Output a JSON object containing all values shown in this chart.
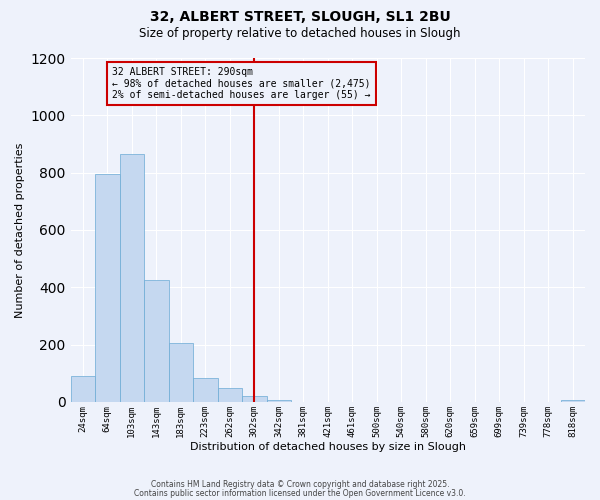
{
  "title": "32, ALBERT STREET, SLOUGH, SL1 2BU",
  "subtitle": "Size of property relative to detached houses in Slough",
  "xlabel": "Distribution of detached houses by size in Slough",
  "ylabel": "Number of detached properties",
  "bar_color": "#c5d8f0",
  "bar_edge_color": "#6aaad4",
  "background_color": "#eef2fb",
  "grid_color": "#ffffff",
  "bin_labels": [
    "24sqm",
    "64sqm",
    "103sqm",
    "143sqm",
    "183sqm",
    "223sqm",
    "262sqm",
    "302sqm",
    "342sqm",
    "381sqm",
    "421sqm",
    "461sqm",
    "500sqm",
    "540sqm",
    "580sqm",
    "620sqm",
    "659sqm",
    "699sqm",
    "739sqm",
    "778sqm",
    "818sqm"
  ],
  "bar_heights": [
    90,
    795,
    865,
    425,
    205,
    85,
    50,
    20,
    5,
    0,
    0,
    0,
    0,
    0,
    0,
    0,
    0,
    0,
    0,
    0,
    5
  ],
  "vline_x": 7,
  "vline_color": "#cc0000",
  "annotation_title": "32 ALBERT STREET: 290sqm",
  "annotation_line1": "← 98% of detached houses are smaller (2,475)",
  "annotation_line2": "2% of semi-detached houses are larger (55) →",
  "annotation_box_color": "#cc0000",
  "ylim": [
    0,
    1200
  ],
  "yticks": [
    0,
    200,
    400,
    600,
    800,
    1000,
    1200
  ],
  "footer1": "Contains HM Land Registry data © Crown copyright and database right 2025.",
  "footer2": "Contains public sector information licensed under the Open Government Licence v3.0."
}
